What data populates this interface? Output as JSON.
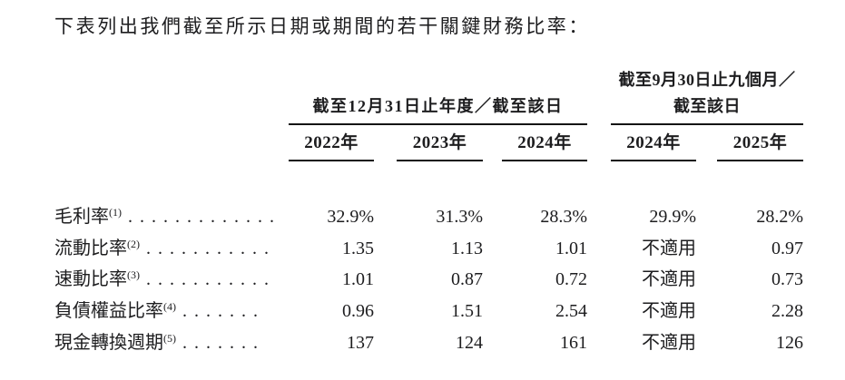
{
  "title": "下表列出我們截至所示日期或期間的若干關鍵財務比率：",
  "colors": {
    "text": "#1d1d1f",
    "rule": "#141414"
  },
  "table": {
    "groups": {
      "annual": "截至12月31日止年度／截至該日",
      "ninemonth_line1": "截至9月30日止九個月／",
      "ninemonth_line2": "截至該日"
    },
    "columns": [
      "2022年",
      "2023年",
      "2024年",
      "2024年",
      "2025年"
    ],
    "rows": [
      {
        "label": "毛利率",
        "note": "(1)",
        "dots": ".............",
        "values": [
          "32.9%",
          "31.3%",
          "28.3%",
          "29.9%",
          "28.2%"
        ]
      },
      {
        "label": "流動比率",
        "note": "(2)",
        "dots": "...........",
        "values": [
          "1.35",
          "1.13",
          "1.01",
          "不適用",
          "0.97"
        ]
      },
      {
        "label": "速動比率",
        "note": "(3)",
        "dots": "...........",
        "values": [
          "1.01",
          "0.87",
          "0.72",
          "不適用",
          "0.73"
        ]
      },
      {
        "label": "負債權益比率",
        "note": "(4)",
        "dots": ".......",
        "values": [
          "0.96",
          "1.51",
          "2.54",
          "不適用",
          "2.28"
        ]
      },
      {
        "label": "現金轉換週期",
        "note": "(5)",
        "dots": ".......",
        "values": [
          "137",
          "124",
          "161",
          "不適用",
          "126"
        ]
      }
    ]
  }
}
